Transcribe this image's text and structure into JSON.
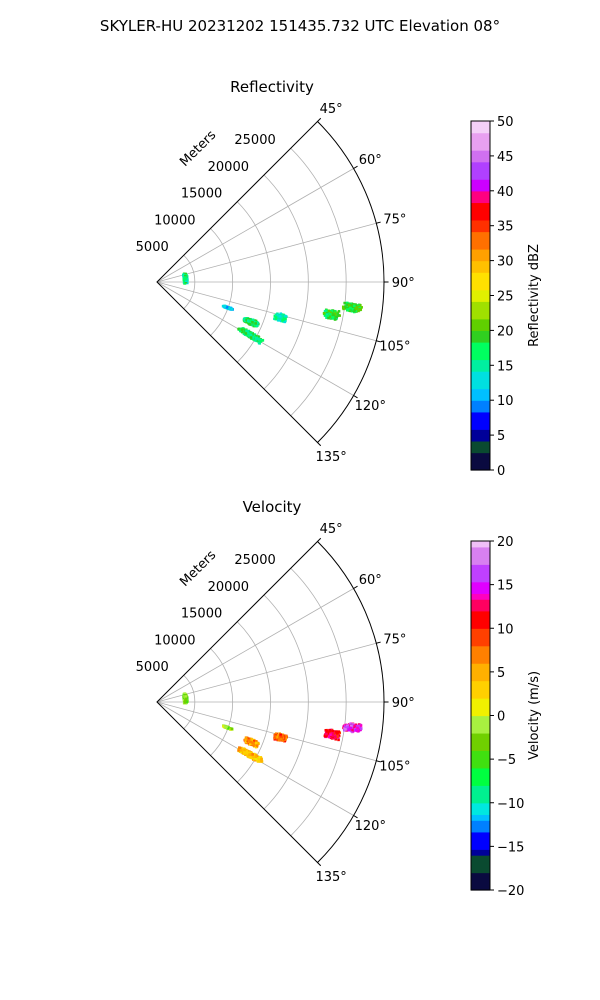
{
  "figure": {
    "title": "SKYLER-HU  20231202  151435.732 UTC Elevation 08°"
  },
  "chart_data": [
    {
      "type": "polar-sector",
      "title": "Reflectivity",
      "range_label": "Meters",
      "theta_range_deg": [
        45,
        135
      ],
      "r_max": 30000,
      "theta_ticks": [
        "45°",
        "60°",
        "75°",
        "90°",
        "105°",
        "120°",
        "135°"
      ],
      "theta_tick_values": [
        45,
        60,
        75,
        90,
        105,
        120,
        135
      ],
      "r_ticks": [
        "5000",
        "10000",
        "15000",
        "20000",
        "25000"
      ],
      "r_tick_values": [
        5000,
        10000,
        15000,
        20000,
        25000
      ],
      "grid": true,
      "colorbar": {
        "label": "Reflectivity dBZ",
        "range": [
          0,
          50
        ],
        "ticks": [
          "0",
          "5",
          "10",
          "15",
          "20",
          "25",
          "30",
          "35",
          "40",
          "45",
          "50"
        ],
        "tick_values": [
          0,
          5,
          10,
          15,
          20,
          25,
          30,
          35,
          40,
          45,
          50
        ]
      },
      "echoes": [
        {
          "theta": 100.5,
          "r": 23500,
          "dtheta": 3.0,
          "dr": 2200,
          "value": 18
        },
        {
          "theta": 97.5,
          "r": 26000,
          "dtheta": 2.5,
          "dr": 2600,
          "value": 19
        },
        {
          "theta": 106.0,
          "r": 17000,
          "dtheta": 3.5,
          "dr": 1700,
          "value": 15
        },
        {
          "theta": 113.0,
          "r": 13500,
          "dtheta": 3.5,
          "dr": 2200,
          "value": 17
        },
        {
          "theta": 119.5,
          "r": 14300,
          "dtheta": 3.0,
          "dr": 3800,
          "value": 17
        },
        {
          "theta": 83.0,
          "r": 3800,
          "dtheta": 20.0,
          "dr": 500,
          "value": 16
        },
        {
          "theta": 110.0,
          "r": 10000,
          "dtheta": 1.5,
          "dr": 1500,
          "value": 12
        }
      ]
    },
    {
      "type": "polar-sector",
      "title": "Velocity",
      "range_label": "Meters",
      "theta_range_deg": [
        45,
        135
      ],
      "r_max": 30000,
      "theta_ticks": [
        "45°",
        "60°",
        "75°",
        "90°",
        "105°",
        "120°",
        "135°"
      ],
      "theta_tick_values": [
        45,
        60,
        75,
        90,
        105,
        120,
        135
      ],
      "r_ticks": [
        "5000",
        "10000",
        "15000",
        "20000",
        "25000"
      ],
      "r_tick_values": [
        5000,
        10000,
        15000,
        20000,
        25000
      ],
      "grid": true,
      "colorbar": {
        "label": "Velocity (m/s)",
        "range": [
          -20,
          20
        ],
        "ticks": [
          "−20",
          "−15",
          "−10",
          "−5",
          "0",
          "5",
          "10",
          "15",
          "20"
        ],
        "tick_values": [
          -20,
          -15,
          -10,
          -5,
          0,
          5,
          10,
          15,
          20
        ]
      },
      "echoes": [
        {
          "theta": 100.5,
          "r": 23500,
          "dtheta": 3.0,
          "dr": 2200,
          "value": 11
        },
        {
          "theta": 97.5,
          "r": 26000,
          "dtheta": 2.5,
          "dr": 2600,
          "value": 15
        },
        {
          "theta": 106.0,
          "r": 17000,
          "dtheta": 3.5,
          "dr": 1700,
          "value": 8
        },
        {
          "theta": 113.0,
          "r": 13500,
          "dtheta": 3.5,
          "dr": 2200,
          "value": 6
        },
        {
          "theta": 119.5,
          "r": 14300,
          "dtheta": 3.0,
          "dr": 3800,
          "value": 4
        },
        {
          "theta": 83.0,
          "r": 3800,
          "dtheta": 20.0,
          "dr": 500,
          "value": -3
        },
        {
          "theta": 110.0,
          "r": 10000,
          "dtheta": 1.5,
          "dr": 1500,
          "value": -2
        }
      ]
    }
  ]
}
